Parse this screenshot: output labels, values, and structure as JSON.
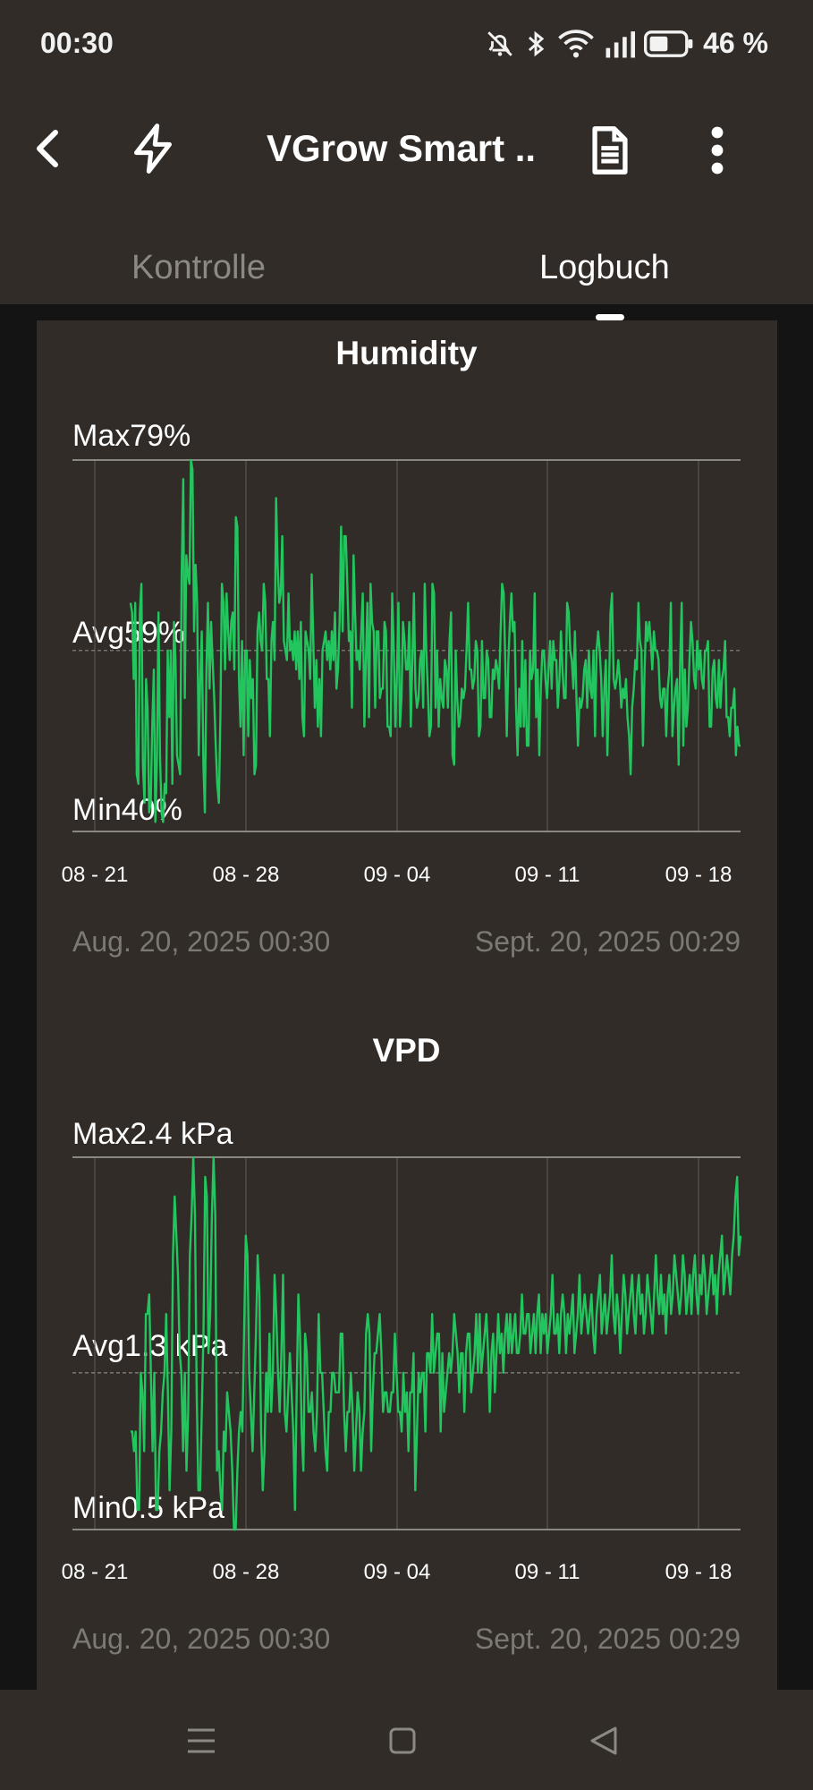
{
  "status_bar": {
    "time": "00:30",
    "battery": "46 %"
  },
  "app_bar": {
    "title": "VGrow Smart .."
  },
  "tabs": [
    {
      "label": "Kontrolle",
      "active": false
    },
    {
      "label": "Logbuch",
      "active": true
    }
  ],
  "colors": {
    "line": "#22c55e",
    "background": "#312c28",
    "muted": "#7c7874"
  },
  "charts": {
    "humidity": {
      "title": "Humidity",
      "max_prefix": "Max",
      "max_value": "79%",
      "avg_prefix": "Avg",
      "avg_value": "59%",
      "min_prefix": "Min",
      "min_value": "40%",
      "start": "Aug. 20, 2025 00:30",
      "end": "Sept. 20, 2025 00:29"
    },
    "vpd": {
      "title": "VPD",
      "max_prefix": "Max",
      "max_value": "2.4 kPa",
      "avg_prefix": "Avg",
      "avg_value": "1.3 kPa",
      "min_prefix": "Min",
      "min_value": "0.5 kPa",
      "start": "Aug. 20, 2025 00:30",
      "end": "Sept. 20, 2025 00:29"
    }
  },
  "chart_data": [
    {
      "type": "line",
      "title": "Humidity",
      "xlabel": "",
      "ylabel": "",
      "x_ticks": [
        "08 - 21",
        "08 - 28",
        "09 - 04",
        "09 - 11",
        "09 - 18"
      ],
      "x_range": [
        "2025-08-20",
        "2025-09-20"
      ],
      "ylim": [
        40,
        79
      ],
      "avg_line": 59,
      "grid": "vertical",
      "series": [
        {
          "values": [
            64,
            63,
            56,
            64,
            46,
            45,
            63,
            66,
            47,
            43,
            56,
            53,
            42,
            43,
            51,
            57,
            41,
            47,
            63,
            48,
            42,
            41,
            45,
            44,
            59,
            52,
            59,
            45,
            62,
            58,
            48,
            47,
            46,
            67,
            77,
            54,
            69,
            67,
            66,
            79,
            78,
            61,
            68,
            64,
            48,
            56,
            61,
            47,
            42,
            57,
            64,
            55,
            62,
            58,
            54,
            49,
            45,
            43,
            52,
            66,
            64,
            57,
            65,
            61,
            58,
            62,
            63,
            57,
            73,
            72,
            56,
            51,
            60,
            48,
            59,
            59,
            50,
            58,
            54,
            56,
            46,
            47,
            61,
            63,
            60,
            59,
            66,
            64,
            56,
            56,
            50,
            60,
            62,
            58,
            75,
            68,
            64,
            65,
            71,
            60,
            59,
            58,
            65,
            59,
            60,
            58,
            61,
            57,
            61,
            56,
            62,
            52,
            50,
            61,
            60,
            59,
            56,
            67,
            60,
            53,
            58,
            51,
            56,
            50,
            59,
            60,
            61,
            58,
            60,
            57,
            61,
            58,
            63,
            55,
            57,
            62,
            72,
            61,
            71,
            71,
            66,
            60,
            61,
            53,
            69,
            63,
            58,
            59,
            57,
            61,
            65,
            51,
            58,
            64,
            52,
            66,
            62,
            61,
            53,
            61,
            61,
            54,
            55,
            55,
            62,
            61,
            51,
            51,
            50,
            65,
            59,
            51,
            56,
            64,
            51,
            54,
            62,
            60,
            57,
            57,
            62,
            51,
            58,
            65,
            55,
            53,
            54,
            58,
            59,
            53,
            66,
            59,
            55,
            50,
            51,
            66,
            65,
            53,
            59,
            51,
            56,
            54,
            53,
            58,
            57,
            53,
            60,
            63,
            48,
            47,
            59,
            54,
            51,
            52,
            55,
            54,
            55,
            59,
            64,
            57,
            57,
            55,
            56,
            60,
            59,
            50,
            51,
            60,
            54,
            54,
            59,
            58,
            52,
            52,
            57,
            56,
            58,
            57,
            55,
            61,
            66,
            65,
            58,
            50,
            58,
            62,
            65,
            61,
            62,
            53,
            48,
            55,
            51,
            60,
            51,
            58,
            49,
            49,
            59,
            56,
            57,
            65,
            52,
            57,
            48,
            55,
            59,
            59,
            56,
            54,
            57,
            60,
            55,
            60,
            58,
            58,
            53,
            56,
            61,
            57,
            54,
            54,
            64,
            63,
            59,
            58,
            55,
            61,
            54,
            49,
            54,
            53,
            54,
            57,
            58,
            53,
            59,
            55,
            54,
            59,
            50,
            59,
            61,
            59,
            56,
            50,
            55,
            58,
            48,
            55,
            63,
            65,
            56,
            55,
            56,
            58,
            56,
            53,
            55,
            54,
            56,
            52,
            50,
            46,
            53,
            55,
            58,
            57,
            64,
            60,
            59,
            49,
            57,
            62,
            60,
            62,
            60,
            57,
            61,
            59,
            59,
            58,
            54,
            53,
            55,
            55,
            50,
            55,
            57,
            64,
            50,
            53,
            55,
            56,
            47,
            58,
            64,
            49,
            57,
            51,
            53,
            58,
            62,
            60,
            56,
            55,
            60,
            57,
            59,
            56,
            55,
            59,
            59,
            60,
            51,
            51,
            57,
            58,
            54,
            53,
            58,
            53,
            56,
            57,
            60,
            52,
            52,
            50,
            53,
            53,
            55,
            48,
            51,
            49,
            49
          ]
        }
      ]
    },
    {
      "type": "line",
      "title": "VPD",
      "xlabel": "",
      "ylabel": "",
      "x_ticks": [
        "08 - 21",
        "08 - 28",
        "09 - 04",
        "09 - 11",
        "09 - 18"
      ],
      "x_range": [
        "2025-08-20",
        "2025-09-20"
      ],
      "ylim": [
        0.5,
        2.4
      ],
      "avg_line": 1.3,
      "grid": "vertical",
      "series": [
        {
          "values": [
            1.0,
            1.0,
            0.9,
            1.0,
            0.6,
            0.6,
            1.3,
            1.2,
            0.9,
            1.6,
            1.6,
            1.7,
            1.3,
            0.9,
            1.3,
            0.6,
            0.6,
            0.9,
            1.0,
            1.2,
            1.3,
            1.6,
            1.2,
            0.7,
            1.0,
            1.9,
            2.2,
            2.0,
            1.8,
            1.4,
            1.3,
            0.9,
            1.3,
            0.8,
            1.1,
            1.9,
            2.1,
            2.4,
            2.1,
            1.2,
            0.7,
            0.7,
            1.1,
            1.5,
            2.3,
            2.2,
            1.4,
            1.6,
            2.1,
            2.4,
            2.1,
            0.8,
            0.9,
            0.7,
            0.6,
            1.0,
            0.9,
            1.2,
            1.1,
            1.0,
            0.8,
            0.5,
            0.5,
            0.8,
            1.0,
            1.1,
            1.0,
            1.5,
            2.0,
            1.9,
            1.3,
            1.1,
            0.9,
            1.2,
            1.5,
            1.9,
            1.7,
            1.0,
            0.7,
            0.9,
            1.3,
            1.1,
            1.5,
            1.1,
            1.3,
            1.8,
            1.6,
            1.3,
            1.1,
            1.4,
            1.8,
            1.1,
            1.0,
            1.2,
            1.4,
            1.2,
            1.0,
            0.6,
            1.2,
            1.7,
            1.5,
            1.0,
            0.8,
            1.5,
            1.4,
            1.1,
            1.1,
            1.2,
            1.0,
            0.9,
            1.1,
            1.6,
            1.3,
            1.3,
            1.1,
            0.9,
            0.8,
            1.1,
            1.1,
            1.3,
            1.3,
            1.2,
            1.2,
            1.2,
            1.5,
            1.5,
            1.1,
            0.9,
            1.1,
            1.1,
            1.3,
            1.1,
            0.8,
            1.0,
            1.2,
            1.1,
            0.8,
            1.0,
            1.1,
            1.5,
            1.6,
            1.5,
            0.9,
            1.2,
            1.4,
            1.4,
            1.5,
            1.6,
            1.4,
            1.1,
            1.2,
            1.2,
            1.1,
            1.1,
            1.2,
            1.2,
            1.5,
            1.3,
            1.1,
            1.1,
            1.0,
            1.3,
            1.1,
            1.2,
            0.9,
            1.2,
            1.2,
            1.4,
            0.7,
            1.0,
            1.3,
            1.2,
            1.3,
            1.3,
            1.0,
            1.4,
            1.4,
            1.3,
            1.6,
            1.3,
            1.4,
            1.5,
            1.5,
            1.0,
            1.4,
            1.1,
            1.2,
            1.3,
            1.4,
            1.3,
            1.4,
            1.6,
            1.5,
            1.4,
            1.2,
            1.4,
            1.4,
            1.1,
            1.4,
            1.5,
            1.5,
            1.2,
            1.3,
            1.4,
            1.6,
            1.3,
            1.6,
            1.3,
            1.4,
            1.5,
            1.6,
            1.4,
            1.1,
            1.4,
            1.5,
            1.2,
            1.4,
            1.6,
            1.4,
            1.5,
            1.3,
            1.5,
            1.6,
            1.4,
            1.6,
            1.4,
            1.5,
            1.6,
            1.4,
            1.4,
            1.5,
            1.7,
            1.5,
            1.5,
            1.6,
            1.6,
            1.4,
            1.5,
            1.6,
            1.4,
            1.6,
            1.7,
            1.4,
            1.6,
            1.5,
            1.6,
            1.4,
            1.5,
            1.6,
            1.8,
            1.5,
            1.5,
            1.6,
            1.4,
            1.6,
            1.7,
            1.6,
            1.4,
            1.6,
            1.5,
            1.6,
            1.7,
            1.4,
            1.5,
            1.6,
            1.8,
            1.5,
            1.6,
            1.7,
            1.6,
            1.5,
            1.6,
            1.7,
            1.5,
            1.4,
            1.6,
            1.7,
            1.8,
            1.5,
            1.6,
            1.7,
            1.5,
            1.6,
            1.7,
            1.9,
            1.6,
            1.5,
            1.7,
            1.6,
            1.4,
            1.6,
            1.8,
            1.7,
            1.5,
            1.6,
            1.7,
            1.8,
            1.6,
            1.5,
            1.7,
            1.8,
            1.6,
            1.7,
            1.5,
            1.6,
            1.8,
            1.7,
            1.6,
            1.5,
            1.7,
            1.9,
            1.7,
            1.6,
            1.8,
            1.6,
            1.7,
            1.5,
            1.7,
            1.8,
            1.6,
            1.7,
            1.9,
            1.8,
            1.7,
            1.6,
            1.7,
            1.9,
            1.8,
            1.6,
            1.7,
            1.8,
            1.6,
            1.8,
            1.9,
            1.7,
            1.6,
            1.8,
            1.7,
            1.9,
            1.8,
            1.6,
            1.7,
            1.8,
            1.9,
            1.7,
            1.8,
            1.6,
            1.8,
            1.9,
            2.0,
            1.7,
            1.8,
            1.9,
            1.8,
            1.7,
            1.9,
            2.0,
            2.2,
            2.3,
            1.9,
            2.0
          ]
        }
      ]
    }
  ]
}
